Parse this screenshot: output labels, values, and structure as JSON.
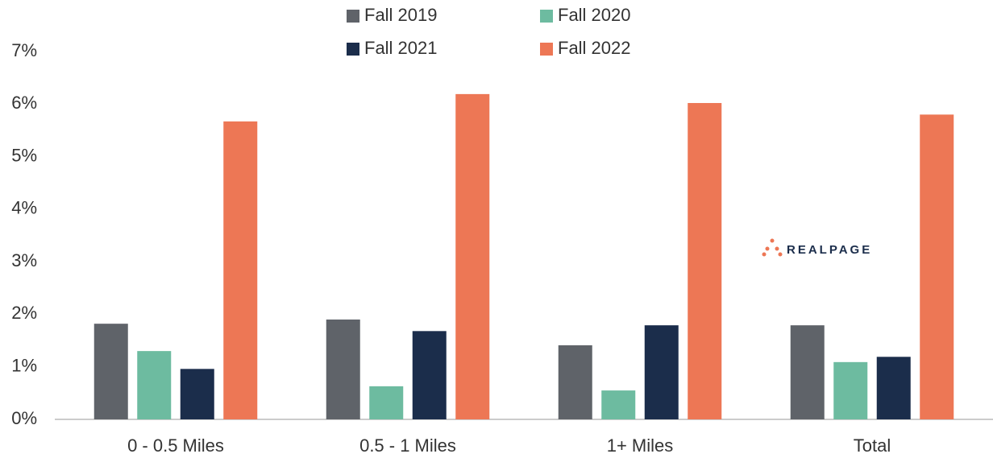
{
  "chart_data": {
    "type": "bar",
    "categories": [
      "0 - 0.5 Miles",
      "0.5 - 1 Miles",
      "1+ Miles",
      "Total"
    ],
    "series": [
      {
        "name": "Fall 2019",
        "color": "#5f6369",
        "values": [
          1.82,
          1.9,
          1.41,
          1.79
        ]
      },
      {
        "name": "Fall 2020",
        "color": "#6dbba0",
        "values": [
          1.3,
          0.63,
          0.55,
          1.09
        ]
      },
      {
        "name": "Fall 2021",
        "color": "#1b2d4b",
        "values": [
          0.96,
          1.68,
          1.79,
          1.19
        ]
      },
      {
        "name": "Fall 2022",
        "color": "#ed7755",
        "values": [
          5.67,
          6.19,
          6.02,
          5.8
        ]
      }
    ],
    "ylim": [
      0,
      7
    ],
    "yticks": [
      {
        "value": 0,
        "label": "0%"
      },
      {
        "value": 1,
        "label": "1%"
      },
      {
        "value": 2,
        "label": "2%"
      },
      {
        "value": 3,
        "label": "3%"
      },
      {
        "value": 4,
        "label": "4%"
      },
      {
        "value": 5,
        "label": "5%"
      },
      {
        "value": 6,
        "label": "6%"
      },
      {
        "value": 7,
        "label": "7%"
      }
    ],
    "grid": false,
    "legend": "top",
    "annotations": [
      "REALPAGE"
    ]
  }
}
